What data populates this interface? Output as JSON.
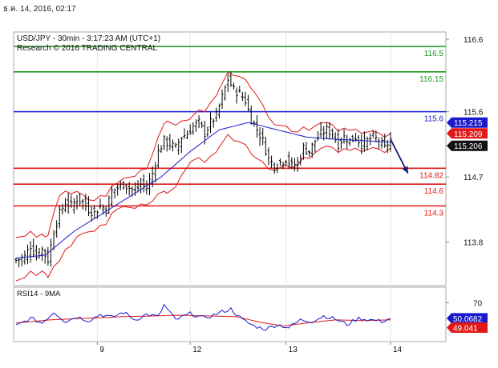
{
  "timestamp": "ธ.ค. 14, 2016, 02:17",
  "chart_data": {
    "type": "candlestick",
    "title": "USD/JPY - 30min - 3:17:23 AM (UTC+1)",
    "subtitle": "Research © 2016 TRADING CENTRAL",
    "x_ticks": [
      "9",
      "12",
      "13",
      "14"
    ],
    "price_axis": {
      "ylim": [
        113.2,
        116.7
      ],
      "ticks": [
        116.6,
        115.6,
        114.7,
        113.8
      ]
    },
    "levels": [
      {
        "label": "116.5",
        "value": 116.5,
        "color": "#1a9a1a"
      },
      {
        "label": "116.15",
        "value": 116.15,
        "color": "#1a9a1a"
      },
      {
        "label": "115.6",
        "value": 115.6,
        "color": "#1a1acc"
      },
      {
        "label": "114.82",
        "value": 114.82,
        "color": "#e01818"
      },
      {
        "label": "114.6",
        "value": 114.6,
        "color": "#e01818"
      },
      {
        "label": "114.3",
        "value": 114.3,
        "color": "#e01818"
      }
    ],
    "current_price_tags": [
      {
        "label": "115.215",
        "value": 115.45,
        "bg": "#1a1acc"
      },
      {
        "label": "115.209",
        "value": 115.3,
        "bg": "#e01818"
      },
      {
        "label": "115.206",
        "value": 115.13,
        "bg": "#111111"
      }
    ],
    "rsi": {
      "label": "RSI14 - 9MA",
      "ylim": [
        20,
        90
      ],
      "ticks": [
        70
      ],
      "tags": [
        {
          "label": "50.0682",
          "value": 50,
          "bg": "#1a1acc"
        },
        {
          "label": "49.041",
          "value": 38,
          "bg": "#e01818"
        }
      ]
    },
    "price_keypoints": [
      [
        0,
        113.55
      ],
      [
        3,
        113.6
      ],
      [
        5,
        113.75
      ],
      [
        7,
        113.6
      ],
      [
        9,
        113.7
      ],
      [
        11,
        113.55
      ],
      [
        13,
        113.95
      ],
      [
        15,
        114.2
      ],
      [
        17,
        114.35
      ],
      [
        19,
        114.3
      ],
      [
        21,
        114.4
      ],
      [
        23,
        114.35
      ],
      [
        25,
        114.25
      ],
      [
        27,
        114.2
      ],
      [
        29,
        114.3
      ],
      [
        31,
        114.25
      ],
      [
        33,
        114.5
      ],
      [
        35,
        114.55
      ],
      [
        37,
        114.6
      ],
      [
        39,
        114.55
      ],
      [
        41,
        114.5
      ],
      [
        43,
        114.6
      ],
      [
        45,
        114.55
      ],
      [
        47,
        114.75
      ],
      [
        49,
        115.05
      ],
      [
        51,
        115.2
      ],
      [
        53,
        115.15
      ],
      [
        55,
        115.1
      ],
      [
        57,
        115.25
      ],
      [
        59,
        115.3
      ],
      [
        61,
        115.4
      ],
      [
        63,
        115.45
      ],
      [
        65,
        115.3
      ],
      [
        67,
        115.45
      ],
      [
        69,
        115.55
      ],
      [
        71,
        115.8
      ],
      [
        73,
        116.05
      ],
      [
        75,
        115.9
      ],
      [
        77,
        115.85
      ],
      [
        79,
        115.75
      ],
      [
        81,
        115.5
      ],
      [
        83,
        115.35
      ],
      [
        85,
        115.2
      ],
      [
        87,
        114.95
      ],
      [
        89,
        114.85
      ],
      [
        91,
        114.9
      ],
      [
        93,
        114.95
      ],
      [
        95,
        114.85
      ],
      [
        97,
        114.9
      ],
      [
        99,
        115.1
      ],
      [
        101,
        115.05
      ],
      [
        103,
        115.2
      ],
      [
        105,
        115.3
      ],
      [
        107,
        115.35
      ],
      [
        109,
        115.3
      ],
      [
        111,
        115.15
      ],
      [
        113,
        115.25
      ],
      [
        115,
        115.2
      ],
      [
        117,
        115.25
      ],
      [
        119,
        115.15
      ],
      [
        121,
        115.2
      ],
      [
        123,
        115.25
      ],
      [
        125,
        115.2
      ],
      [
        127,
        115.1
      ],
      [
        129,
        115.22
      ]
    ],
    "ma_keypoints": [
      [
        0,
        113.58
      ],
      [
        10,
        113.62
      ],
      [
        20,
        113.95
      ],
      [
        30,
        114.2
      ],
      [
        40,
        114.45
      ],
      [
        50,
        114.7
      ],
      [
        60,
        115.05
      ],
      [
        70,
        115.35
      ],
      [
        80,
        115.45
      ],
      [
        90,
        115.35
      ],
      [
        100,
        115.25
      ],
      [
        110,
        115.22
      ],
      [
        129,
        115.18
      ]
    ],
    "band_width_keypoints": [
      [
        0,
        0.3
      ],
      [
        10,
        0.25
      ],
      [
        15,
        0.45
      ],
      [
        25,
        0.22
      ],
      [
        35,
        0.18
      ],
      [
        45,
        0.25
      ],
      [
        52,
        0.5
      ],
      [
        60,
        0.3
      ],
      [
        70,
        0.4
      ],
      [
        75,
        0.45
      ],
      [
        82,
        0.45
      ],
      [
        90,
        0.3
      ],
      [
        100,
        0.2
      ],
      [
        110,
        0.15
      ],
      [
        129,
        0.1
      ]
    ],
    "rsi_keypoints": [
      [
        0,
        40
      ],
      [
        5,
        50
      ],
      [
        9,
        44
      ],
      [
        13,
        58
      ],
      [
        17,
        46
      ],
      [
        21,
        52
      ],
      [
        25,
        47
      ],
      [
        29,
        55
      ],
      [
        33,
        51
      ],
      [
        37,
        58
      ],
      [
        41,
        48
      ],
      [
        45,
        55
      ],
      [
        49,
        52
      ],
      [
        51,
        67
      ],
      [
        55,
        48
      ],
      [
        60,
        56
      ],
      [
        65,
        50
      ],
      [
        70,
        57
      ],
      [
        74,
        62
      ],
      [
        78,
        48
      ],
      [
        82,
        40
      ],
      [
        86,
        36
      ],
      [
        90,
        42
      ],
      [
        94,
        38
      ],
      [
        98,
        48
      ],
      [
        102,
        46
      ],
      [
        106,
        53
      ],
      [
        110,
        49
      ],
      [
        114,
        42
      ],
      [
        118,
        50
      ],
      [
        122,
        48
      ],
      [
        126,
        46
      ],
      [
        129,
        50
      ]
    ],
    "rsi_ma_keypoints": [
      [
        0,
        44
      ],
      [
        12,
        48
      ],
      [
        24,
        50
      ],
      [
        36,
        52
      ],
      [
        48,
        53
      ],
      [
        56,
        54
      ],
      [
        66,
        53
      ],
      [
        76,
        52
      ],
      [
        84,
        45
      ],
      [
        92,
        40
      ],
      [
        100,
        44
      ],
      [
        110,
        48
      ],
      [
        120,
        47
      ],
      [
        129,
        48
      ]
    ],
    "forecast_arrow": {
      "from": [
        129,
        115.22
      ],
      "to": [
        135,
        114.75
      ]
    },
    "candle_count": 130,
    "colors": {
      "candle": "#000000",
      "ma": "#1a1acc",
      "bands": "#e01818",
      "rsi": "#1a1acc",
      "rsi_ma": "#e01818"
    }
  }
}
